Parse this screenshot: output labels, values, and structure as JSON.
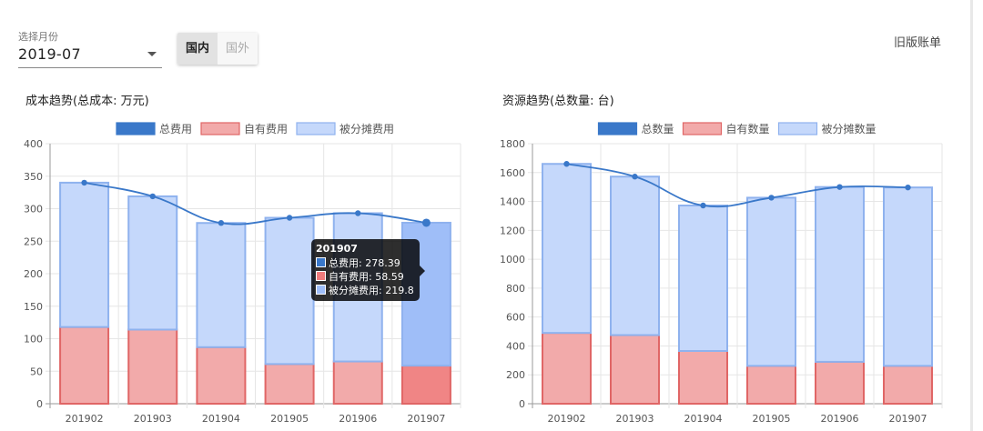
{
  "controls": {
    "month_label": "选择月份",
    "month_value": "2019-07",
    "region_tabs": [
      "国内",
      "国外"
    ],
    "region_active": 0,
    "old_bill_link": "旧版账单"
  },
  "colors": {
    "total": "#3a78c9",
    "own_fill": "#f2aaaa",
    "own_border": "#e06666",
    "shared_fill": "#c5d8fb",
    "shared_border": "#8fb2ee"
  },
  "chart_data": [
    {
      "type": "bar",
      "title": "成本趋势(总成本: 万元)",
      "categories": [
        "201902",
        "201903",
        "201904",
        "201905",
        "201906",
        "201907"
      ],
      "stacked": true,
      "series": [
        {
          "name": "总费用",
          "type": "line",
          "values": [
            340,
            319,
            278,
            286,
            293,
            278.39
          ]
        },
        {
          "name": "自有费用",
          "type": "bar",
          "values": [
            118,
            114,
            87,
            61,
            65,
            58.59
          ]
        },
        {
          "name": "被分摊费用",
          "type": "bar",
          "values": [
            222,
            205,
            191,
            225,
            228,
            219.8
          ]
        }
      ],
      "ylim": [
        0,
        400
      ],
      "yticks": [
        0,
        50,
        100,
        150,
        200,
        250,
        300,
        350,
        400
      ],
      "grid": true,
      "legend": "top",
      "highlight_index": 5,
      "tooltip": {
        "title": "201907",
        "rows": [
          "总费用: 278.39",
          "自有费用: 58.59",
          "被分摊费用: 219.8"
        ]
      }
    },
    {
      "type": "bar",
      "title": "资源趋势(总数量: 台)",
      "categories": [
        "201902",
        "201903",
        "201904",
        "201905",
        "201906",
        "201907"
      ],
      "stacked": true,
      "series": [
        {
          "name": "总数量",
          "type": "line",
          "values": [
            1660,
            1572,
            1372,
            1426,
            1500,
            1497
          ]
        },
        {
          "name": "自有数量",
          "type": "bar",
          "values": [
            490,
            475,
            365,
            262,
            290,
            262
          ]
        },
        {
          "name": "被分摊数量",
          "type": "bar",
          "values": [
            1170,
            1097,
            1007,
            1164,
            1210,
            1235
          ]
        }
      ],
      "ylim": [
        0,
        1800
      ],
      "yticks": [
        0,
        200,
        400,
        600,
        800,
        1000,
        1200,
        1400,
        1600,
        1800
      ],
      "grid": true,
      "legend": "top"
    }
  ]
}
